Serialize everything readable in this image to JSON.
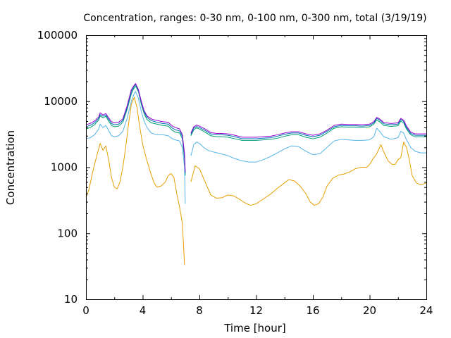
{
  "chart_data": {
    "type": "line",
    "title": "Concentration, ranges: 0-30 nm, 0-100 nm, 0-300 nm, total (3/19/19)",
    "xlabel": "Time [hour]",
    "ylabel": "Concentration",
    "xlim": [
      0,
      24
    ],
    "ylim": [
      10,
      100000
    ],
    "yscale": "log",
    "grid": false,
    "xticks": [
      0,
      4,
      8,
      12,
      16,
      20,
      24
    ],
    "xtick_labels": [
      "0",
      "4",
      "8",
      "12",
      "16",
      "20",
      "24"
    ],
    "yticks": [
      10,
      100,
      1000,
      10000,
      100000
    ],
    "ytick_labels": [
      "10",
      "100",
      "1000",
      "10000",
      "100000"
    ],
    "series": [
      {
        "color": "#e69f00",
        "x": [
          0,
          0.2,
          0.5,
          0.8,
          1.0,
          1.2,
          1.4,
          1.6,
          1.8,
          2.0,
          2.2,
          2.4,
          2.6,
          2.8,
          3.0,
          3.2,
          3.4,
          3.6,
          3.8,
          4.0,
          4.2,
          4.5,
          4.8,
          5.0,
          5.3,
          5.6,
          5.8,
          6.0,
          6.2,
          6.4,
          6.6,
          6.8,
          6.95,
          7.0,
          7.4,
          7.7,
          8.0,
          8.4,
          8.8,
          9.2,
          9.6,
          10.0,
          10.4,
          10.8,
          11.2,
          11.6,
          12.0,
          12.5,
          13.0,
          13.5,
          13.9,
          14.3,
          14.7,
          15.1,
          15.5,
          15.8,
          16.1,
          16.4,
          16.7,
          17.0,
          17.4,
          17.8,
          18.2,
          18.6,
          19.0,
          19.4,
          19.8,
          20.0,
          20.2,
          20.5,
          20.8,
          21.0,
          21.3,
          21.6,
          21.8,
          22.0,
          22.2,
          22.4,
          22.6,
          22.8,
          23.0,
          23.3,
          23.6,
          24.0
        ],
        "y": [
          350,
          450,
          900,
          1600,
          2300,
          1800,
          2100,
          1300,
          700,
          500,
          470,
          600,
          1000,
          2000,
          4500,
          9000,
          11500,
          8000,
          4000,
          2200,
          1500,
          900,
          580,
          500,
          520,
          600,
          750,
          800,
          700,
          400,
          250,
          140,
          33,
          null,
          600,
          1050,
          950,
          600,
          380,
          340,
          345,
          380,
          370,
          330,
          290,
          265,
          280,
          330,
          390,
          480,
          560,
          650,
          620,
          520,
          400,
          300,
          265,
          280,
          350,
          520,
          680,
          760,
          790,
          850,
          950,
          1000,
          1000,
          1100,
          1300,
          1600,
          2200,
          1700,
          1250,
          1100,
          1100,
          1300,
          1400,
          2400,
          2000,
          1300,
          750,
          580,
          540,
          580
        ]
      },
      {
        "color": "#56b4e9",
        "x": [
          0,
          0.3,
          0.6,
          0.9,
          1.0,
          1.2,
          1.4,
          1.6,
          1.8,
          2.0,
          2.3,
          2.6,
          2.9,
          3.2,
          3.4,
          3.5,
          3.7,
          3.9,
          4.1,
          4.3,
          4.6,
          5.0,
          5.4,
          5.8,
          6.1,
          6.3,
          6.6,
          6.8,
          6.95,
          7.0,
          7.2,
          7.4,
          7.6,
          7.8,
          8.0,
          8.3,
          8.6,
          9.0,
          9.5,
          10.0,
          10.5,
          11.0,
          11.5,
          12.0,
          12.5,
          13.0,
          13.5,
          14.0,
          14.5,
          15.0,
          15.5,
          16.0,
          16.5,
          17.0,
          17.5,
          18.0,
          18.5,
          19.0,
          19.5,
          20.0,
          20.3,
          20.5,
          20.7,
          21.0,
          21.5,
          22.0,
          22.2,
          22.4,
          22.6,
          22.9,
          23.2,
          23.6,
          24.0
        ],
        "y": [
          2700,
          2800,
          3100,
          3800,
          4500,
          4000,
          4300,
          3600,
          3000,
          2900,
          3000,
          3500,
          5500,
          10000,
          13000,
          14000,
          11000,
          7000,
          5000,
          4000,
          3300,
          3100,
          3100,
          3000,
          2700,
          2600,
          2500,
          2000,
          1000,
          280,
          null,
          1500,
          2200,
          2400,
          2300,
          2000,
          1800,
          1700,
          1600,
          1500,
          1350,
          1250,
          1200,
          1200,
          1300,
          1450,
          1650,
          1900,
          2100,
          2050,
          1750,
          1550,
          1600,
          2000,
          2500,
          2650,
          2600,
          2550,
          2550,
          2600,
          2900,
          3900,
          3500,
          2900,
          2650,
          2800,
          3500,
          3300,
          2600,
          2000,
          1750,
          1650,
          1650
        ]
      },
      {
        "color": "#009e73",
        "x": [
          0,
          0.3,
          0.6,
          0.9,
          1.0,
          1.2,
          1.4,
          1.6,
          1.8,
          2.0,
          2.3,
          2.6,
          2.9,
          3.2,
          3.4,
          3.5,
          3.7,
          3.9,
          4.1,
          4.3,
          4.6,
          5.0,
          5.4,
          5.8,
          6.1,
          6.3,
          6.6,
          6.8,
          6.95,
          7.0,
          7.2,
          7.4,
          7.6,
          7.8,
          8.0,
          8.4,
          8.8,
          9.2,
          9.6,
          10.0,
          10.5,
          11.0,
          11.5,
          12.0,
          12.5,
          13.0,
          13.5,
          14.0,
          14.5,
          15.0,
          15.5,
          16.0,
          16.5,
          17.0,
          17.5,
          18.0,
          18.5,
          19.0,
          19.5,
          20.0,
          20.3,
          20.5,
          20.7,
          21.0,
          21.5,
          22.0,
          22.2,
          22.4,
          22.6,
          22.9,
          23.2,
          23.6,
          24.0
        ],
        "y": [
          3800,
          4000,
          4400,
          5200,
          6000,
          5600,
          5900,
          5000,
          4300,
          4100,
          4200,
          4800,
          7500,
          13000,
          16000,
          17000,
          14000,
          9000,
          6500,
          5300,
          4700,
          4500,
          4300,
          4200,
          3600,
          3400,
          3300,
          2700,
          1300,
          750,
          null,
          3000,
          3700,
          3950,
          3800,
          3400,
          3000,
          2900,
          2900,
          2850,
          2700,
          2550,
          2550,
          2550,
          2600,
          2650,
          2750,
          2950,
          3100,
          3100,
          2850,
          2700,
          2850,
          3300,
          3900,
          4100,
          4050,
          4050,
          4000,
          4100,
          4500,
          5200,
          4900,
          4300,
          4150,
          4250,
          5000,
          4700,
          3800,
          3100,
          2900,
          2900,
          2900
        ]
      },
      {
        "color": "#0072b2",
        "x": [
          0,
          0.3,
          0.6,
          0.9,
          1.0,
          1.2,
          1.4,
          1.6,
          1.8,
          2.0,
          2.3,
          2.6,
          2.9,
          3.2,
          3.4,
          3.5,
          3.7,
          3.9,
          4.1,
          4.3,
          4.6,
          5.0,
          5.4,
          5.8,
          6.1,
          6.3,
          6.6,
          6.8,
          6.95,
          7.0,
          7.2,
          7.4,
          7.6,
          7.8,
          8.0,
          8.4,
          8.8,
          9.2,
          9.6,
          10.0,
          10.5,
          11.0,
          11.5,
          12.0,
          12.5,
          13.0,
          13.5,
          14.0,
          14.5,
          15.0,
          15.5,
          16.0,
          16.5,
          17.0,
          17.5,
          18.0,
          18.5,
          19.0,
          19.5,
          20.0,
          20.3,
          20.5,
          20.7,
          21.0,
          21.5,
          22.0,
          22.2,
          22.4,
          22.6,
          22.9,
          23.2,
          23.6,
          24.0
        ],
        "y": [
          4100,
          4300,
          4700,
          5500,
          6300,
          5900,
          6200,
          5300,
          4600,
          4400,
          4500,
          5100,
          8000,
          14000,
          17000,
          18000,
          14500,
          9500,
          6900,
          5700,
          5100,
          4800,
          4600,
          4500,
          3900,
          3700,
          3550,
          2900,
          1450,
          800,
          null,
          3150,
          3900,
          4150,
          4000,
          3600,
          3200,
          3100,
          3100,
          3050,
          2900,
          2700,
          2700,
          2700,
          2750,
          2800,
          2950,
          3150,
          3300,
          3300,
          3050,
          2900,
          3050,
          3500,
          4100,
          4300,
          4250,
          4250,
          4200,
          4300,
          4700,
          5500,
          5200,
          4550,
          4400,
          4500,
          5300,
          4950,
          4000,
          3250,
          3050,
          3050,
          3050
        ]
      },
      {
        "color": "#9400d3",
        "x": [
          0,
          0.3,
          0.6,
          0.9,
          1.0,
          1.2,
          1.4,
          1.6,
          1.8,
          2.0,
          2.3,
          2.6,
          2.9,
          3.2,
          3.4,
          3.5,
          3.7,
          3.9,
          4.1,
          4.3,
          4.6,
          5.0,
          5.4,
          5.8,
          6.1,
          6.3,
          6.6,
          6.8,
          6.95,
          7.0,
          7.2,
          7.4,
          7.6,
          7.8,
          8.0,
          8.4,
          8.8,
          9.2,
          9.6,
          10.0,
          10.5,
          11.0,
          11.5,
          12.0,
          12.5,
          13.0,
          13.5,
          14.0,
          14.5,
          15.0,
          15.5,
          16.0,
          16.5,
          17.0,
          17.5,
          18.0,
          18.5,
          19.0,
          19.5,
          20.0,
          20.3,
          20.5,
          20.7,
          21.0,
          21.5,
          22.0,
          22.2,
          22.4,
          22.6,
          22.9,
          23.2,
          23.6,
          24.0
        ],
        "y": [
          4400,
          4600,
          5000,
          5800,
          6700,
          6200,
          6500,
          5600,
          4900,
          4700,
          4800,
          5400,
          8500,
          15000,
          17500,
          18500,
          15000,
          10000,
          7200,
          6000,
          5400,
          5100,
          4900,
          4800,
          4200,
          4000,
          3800,
          3100,
          1600,
          850,
          null,
          3300,
          4100,
          4350,
          4200,
          3800,
          3350,
          3250,
          3250,
          3200,
          3050,
          2850,
          2850,
          2850,
          2900,
          2950,
          3100,
          3300,
          3450,
          3450,
          3200,
          3050,
          3200,
          3650,
          4300,
          4500,
          4450,
          4450,
          4400,
          4500,
          4900,
          5700,
          5400,
          4750,
          4600,
          4700,
          5500,
          5150,
          4200,
          3400,
          3200,
          3200,
          3200
        ]
      }
    ]
  }
}
